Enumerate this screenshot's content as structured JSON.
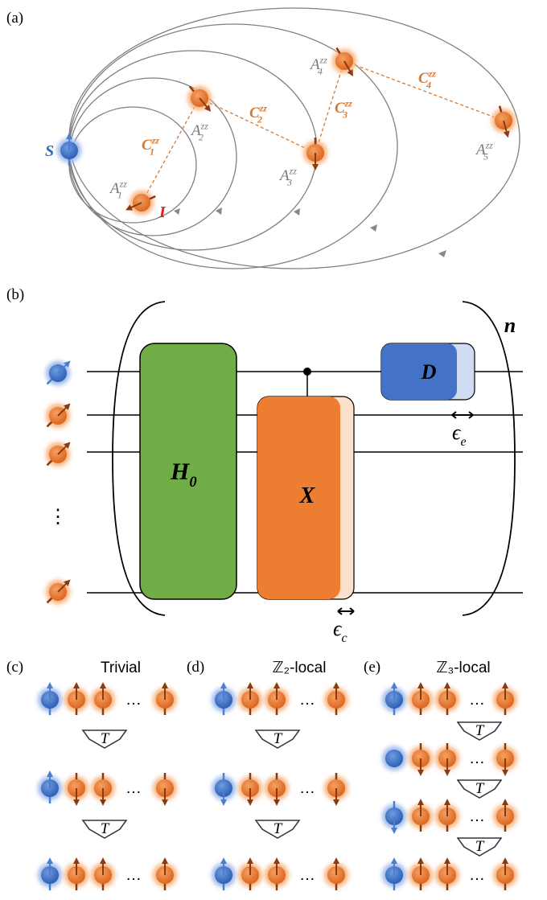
{
  "panel_a": {
    "label": "(a)",
    "s_spin": "S",
    "i_spin": "I",
    "hyperfine": [
      {
        "base": "A",
        "sub": "1",
        "sup": "zz"
      },
      {
        "base": "A",
        "sub": "2",
        "sup": "zz"
      },
      {
        "base": "A",
        "sub": "3",
        "sup": "zz"
      },
      {
        "base": "A",
        "sub": "4",
        "sup": "zz"
      },
      {
        "base": "A",
        "sub": "5",
        "sup": "zz"
      }
    ],
    "couplings": [
      {
        "base": "C",
        "sub": "1",
        "sup": "zz"
      },
      {
        "base": "C",
        "sub": "2",
        "sup": "zz"
      },
      {
        "base": "C",
        "sub": "3",
        "sup": "zz"
      },
      {
        "base": "C",
        "sub": "4",
        "sup": "zz"
      }
    ]
  },
  "panel_b": {
    "label": "(b)",
    "repeat": "n",
    "vdots": "⋮",
    "gates": {
      "h0": {
        "base": "H",
        "sub": "0"
      },
      "x": "X",
      "d": "D"
    },
    "errors": {
      "e": {
        "base": "ϵ",
        "sub": "e"
      },
      "c": {
        "base": "ϵ",
        "sub": "c"
      }
    }
  },
  "panel_c": {
    "label": "(c)",
    "title": "Trivial",
    "steps": [
      "T",
      "T"
    ],
    "ellipses": [
      "…",
      "…",
      "…"
    ]
  },
  "panel_d": {
    "label": "(d)",
    "title": "ℤ₂-local",
    "steps": [
      "T",
      "T"
    ],
    "ellipses": [
      "…",
      "…",
      "…"
    ]
  },
  "panel_e": {
    "label": "(e)",
    "title": "ℤ₃-local",
    "steps": [
      "T",
      "T",
      "T"
    ],
    "ellipses": [
      "…",
      "…",
      "…",
      "…"
    ]
  }
}
